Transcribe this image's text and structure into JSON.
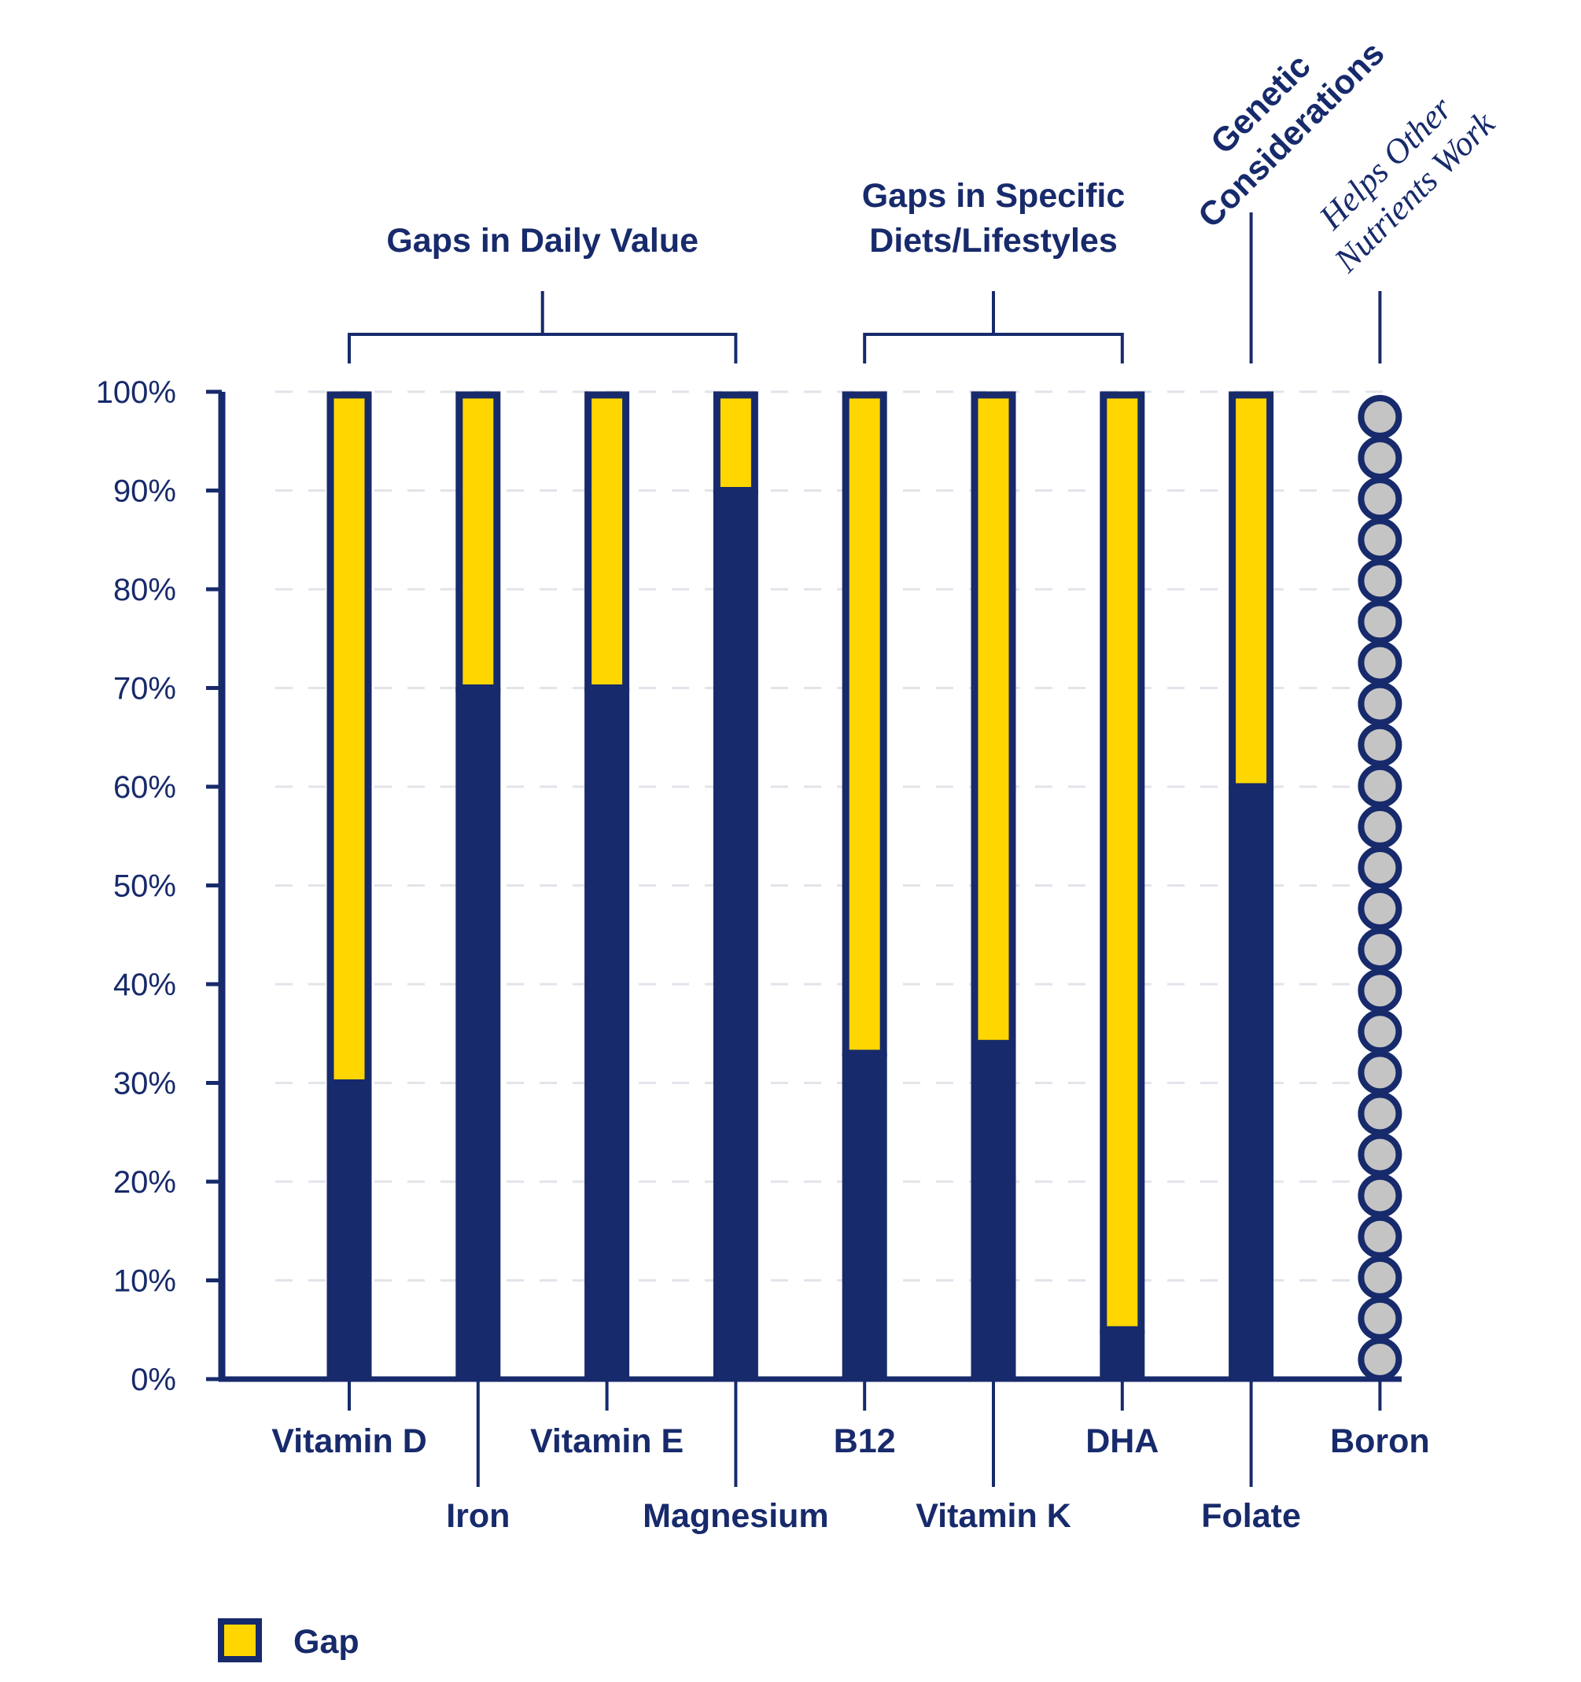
{
  "chart_data": {
    "type": "bar",
    "stacked": true,
    "categories": [
      "Vitamin D",
      "Iron",
      "Vitamin E",
      "Magnesium",
      "B12",
      "Vitamin K",
      "DHA",
      "Folate",
      "Boron"
    ],
    "series": [
      {
        "values": [
          30,
          70,
          70,
          90,
          33,
          34,
          5,
          60,
          null
        ]
      },
      {
        "name": "Gap",
        "values": [
          70,
          30,
          30,
          10,
          67,
          66,
          95,
          40,
          null
        ]
      }
    ],
    "yticks": [
      "0%",
      "10%",
      "20%",
      "30%",
      "40%",
      "50%",
      "60%",
      "70%",
      "80%",
      "90%",
      "100%"
    ],
    "ylim": [
      0,
      100
    ],
    "groups": [
      {
        "label_lines": [
          "Gaps in Daily Value"
        ],
        "categories": [
          "Vitamin D",
          "Iron",
          "Vitamin E",
          "Magnesium"
        ]
      },
      {
        "label_lines": [
          "Gaps in Specific",
          "Diets/Lifestyles"
        ],
        "categories": [
          "B12",
          "Vitamin K",
          "DHA"
        ]
      },
      {
        "label_lines": [
          "Genetic",
          "Considerations"
        ],
        "categories": [
          "Folate"
        ]
      },
      {
        "label_lines": [
          "Helps Other",
          "Nutrients Work"
        ],
        "categories": [
          "Boron"
        ]
      }
    ],
    "special": {
      "Boron": "stack-of-circles"
    },
    "legend": {
      "position": "bottom-left",
      "label": "Gap"
    },
    "grid": true,
    "colors": {
      "navy": "#172A6B",
      "gap": "#FFD600",
      "grid": "#E3E3EB",
      "circle_fill": "#C4C4C4"
    }
  }
}
